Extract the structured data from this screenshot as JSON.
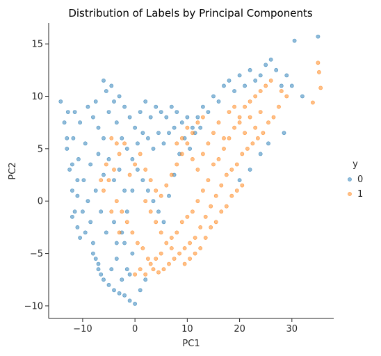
{
  "chart_data": {
    "type": "scatter",
    "title": "Distribution of Labels by Principal Components",
    "xlabel": "PC1",
    "ylabel": "PC2",
    "xlim": [
      -16.5,
      38.0
    ],
    "ylim": [
      -11.2,
      17.0
    ],
    "xticks": [
      -10,
      0,
      10,
      20,
      30
    ],
    "yticks": [
      -10,
      -5,
      0,
      5,
      10,
      15
    ],
    "grid": false,
    "legend": {
      "title": "y",
      "placement": "right",
      "entries": [
        "0",
        "1"
      ]
    },
    "series": [
      {
        "name": "0",
        "color": "#1f77b4",
        "points": [
          [
            -14.2,
            9.5
          ],
          [
            -13.5,
            7.5
          ],
          [
            -13.0,
            5.0
          ],
          [
            -12.5,
            3.0
          ],
          [
            -12.0,
            1.0
          ],
          [
            -11.5,
            -1.0
          ],
          [
            -11.0,
            -2.5
          ],
          [
            -10.5,
            -3.5
          ],
          [
            -12.8,
            8.5
          ],
          [
            -11.8,
            6.0
          ],
          [
            -10.8,
            4.0
          ],
          [
            -9.8,
            2.0
          ],
          [
            -9.0,
            0.0
          ],
          [
            -8.5,
            -2.0
          ],
          [
            -8.0,
            -4.0
          ],
          [
            -7.5,
            -5.5
          ],
          [
            -7.0,
            -6.5
          ],
          [
            -6.5,
            -7.0
          ],
          [
            -6.0,
            -7.5
          ],
          [
            -5.0,
            -8.0
          ],
          [
            -4.0,
            -8.5
          ],
          [
            -3.0,
            -8.8
          ],
          [
            -2.0,
            -9.0
          ],
          [
            -1.0,
            -9.5
          ],
          [
            0.0,
            -9.8
          ],
          [
            -2.5,
            -7.5
          ],
          [
            -1.5,
            -6.5
          ],
          [
            -0.5,
            -5.0
          ],
          [
            -3.5,
            -4.0
          ],
          [
            -5.5,
            -3.0
          ],
          [
            -6.5,
            -1.0
          ],
          [
            -7.5,
            1.0
          ],
          [
            -8.5,
            3.5
          ],
          [
            -9.5,
            5.5
          ],
          [
            -10.5,
            7.5
          ],
          [
            -11.5,
            8.5
          ],
          [
            -9.0,
            9.0
          ],
          [
            -8.0,
            8.0
          ],
          [
            -7.0,
            7.0
          ],
          [
            -6.0,
            6.0
          ],
          [
            -5.0,
            8.5
          ],
          [
            -4.0,
            9.5
          ],
          [
            -3.0,
            10.0
          ],
          [
            -2.0,
            9.0
          ],
          [
            -1.0,
            8.0
          ],
          [
            0.0,
            7.0
          ],
          [
            1.0,
            8.5
          ],
          [
            2.0,
            9.5
          ],
          [
            3.0,
            8.0
          ],
          [
            4.0,
            9.0
          ],
          [
            5.0,
            8.5
          ],
          [
            6.0,
            8.0
          ],
          [
            7.0,
            9.0
          ],
          [
            8.0,
            8.5
          ],
          [
            9.0,
            7.5
          ],
          [
            10.0,
            8.0
          ],
          [
            11.0,
            7.0
          ],
          [
            12.0,
            8.0
          ],
          [
            13.0,
            9.0
          ],
          [
            14.0,
            8.5
          ],
          [
            15.0,
            10.0
          ],
          [
            16.0,
            9.5
          ],
          [
            17.0,
            11.0
          ],
          [
            18.0,
            11.5
          ],
          [
            19.0,
            10.5
          ],
          [
            20.0,
            12.0
          ],
          [
            21.0,
            11.0
          ],
          [
            22.0,
            12.5
          ],
          [
            23.0,
            11.5
          ],
          [
            24.0,
            12.0
          ],
          [
            25.0,
            13.0
          ],
          [
            26.0,
            13.5
          ],
          [
            27.0,
            12.5
          ],
          [
            28.0,
            11.0
          ],
          [
            29.0,
            12.0
          ],
          [
            30.0,
            11.0
          ],
          [
            32.0,
            10.0
          ],
          [
            35.0,
            15.7
          ],
          [
            30.5,
            15.3
          ],
          [
            28.5,
            6.5
          ],
          [
            25.5,
            5.5
          ],
          [
            24.0,
            4.5
          ],
          [
            22.0,
            3.0
          ],
          [
            20.0,
            2.0
          ],
          [
            -5.5,
            10.5
          ],
          [
            -4.5,
            11.0
          ],
          [
            -6.0,
            11.5
          ],
          [
            -7.5,
            9.5
          ],
          [
            -3.5,
            7.5
          ],
          [
            -2.5,
            6.0
          ],
          [
            -1.5,
            5.0
          ],
          [
            -0.5,
            4.0
          ],
          [
            0.5,
            3.0
          ],
          [
            1.5,
            2.0
          ],
          [
            2.5,
            1.0
          ],
          [
            3.5,
            0.0
          ],
          [
            4.5,
            -1.0
          ],
          [
            5.5,
            -2.0
          ],
          [
            6.5,
            0.5
          ],
          [
            7.5,
            2.5
          ],
          [
            8.5,
            4.5
          ],
          [
            9.5,
            6.0
          ],
          [
            10.5,
            5.0
          ],
          [
            11.5,
            6.5
          ],
          [
            12.5,
            7.0
          ],
          [
            -12.0,
            -1.5
          ],
          [
            -11.0,
            0.5
          ],
          [
            -10.0,
            -1.0
          ],
          [
            -9.5,
            -3.0
          ],
          [
            -8.0,
            -5.0
          ],
          [
            -7.0,
            -6.0
          ],
          [
            -4.5,
            -6.5
          ],
          [
            -3.5,
            -5.5
          ],
          [
            -2.5,
            -3.0
          ],
          [
            -1.5,
            -1.0
          ],
          [
            -0.5,
            1.0
          ],
          [
            0.5,
            5.5
          ],
          [
            1.5,
            6.5
          ],
          [
            2.5,
            6.0
          ],
          [
            3.5,
            5.0
          ],
          [
            4.5,
            6.5
          ],
          [
            5.5,
            5.5
          ],
          [
            6.5,
            6.5
          ],
          [
            7.5,
            7.0
          ],
          [
            -4.0,
            2.0
          ],
          [
            -3.0,
            3.0
          ],
          [
            -2.0,
            1.0
          ],
          [
            -5.0,
            4.0
          ],
          [
            -6.0,
            2.5
          ],
          [
            -7.0,
            4.5
          ],
          [
            -4.0,
            -2.0
          ],
          [
            -2.0,
            -4.0
          ],
          [
            -1.0,
            -7.0
          ],
          [
            1.0,
            -8.5
          ],
          [
            2.0,
            -7.5
          ],
          [
            -13.0,
            6.0
          ],
          [
            -12.0,
            3.5
          ],
          [
            -11.0,
            2.0
          ]
        ]
      },
      {
        "name": "1",
        "color": "#ff7f0e",
        "points": [
          [
            0.0,
            -7.0
          ],
          [
            1.0,
            -6.5
          ],
          [
            2.0,
            -7.0
          ],
          [
            3.0,
            -6.0
          ],
          [
            4.0,
            -5.5
          ],
          [
            5.0,
            -5.0
          ],
          [
            6.0,
            -4.0
          ],
          [
            7.0,
            -3.5
          ],
          [
            8.0,
            -3.0
          ],
          [
            9.0,
            -2.0
          ],
          [
            10.0,
            -1.5
          ],
          [
            11.0,
            -1.0
          ],
          [
            12.0,
            0.0
          ],
          [
            13.0,
            1.0
          ],
          [
            14.0,
            2.0
          ],
          [
            15.0,
            3.5
          ],
          [
            16.0,
            4.0
          ],
          [
            17.0,
            5.0
          ],
          [
            18.0,
            6.0
          ],
          [
            19.0,
            7.0
          ],
          [
            20.0,
            8.0
          ],
          [
            21.0,
            9.0
          ],
          [
            22.0,
            9.5
          ],
          [
            23.0,
            10.0
          ],
          [
            24.0,
            10.5
          ],
          [
            25.0,
            11.0
          ],
          [
            26.0,
            11.5
          ],
          [
            28.0,
            10.5
          ],
          [
            29.0,
            10.0
          ],
          [
            34.0,
            9.4
          ],
          [
            35.0,
            13.2
          ],
          [
            35.2,
            12.3
          ],
          [
            35.5,
            10.8
          ],
          [
            27.5,
            9.0
          ],
          [
            26.5,
            8.0
          ],
          [
            25.5,
            7.5
          ],
          [
            24.5,
            6.5
          ],
          [
            23.5,
            6.0
          ],
          [
            22.5,
            5.5
          ],
          [
            21.5,
            5.0
          ],
          [
            20.5,
            4.5
          ],
          [
            19.5,
            3.5
          ],
          [
            18.5,
            3.0
          ],
          [
            17.5,
            2.5
          ],
          [
            16.5,
            1.5
          ],
          [
            15.5,
            0.5
          ],
          [
            14.5,
            -0.5
          ],
          [
            13.5,
            -1.5
          ],
          [
            12.5,
            -2.5
          ],
          [
            11.5,
            -3.5
          ],
          [
            10.5,
            -4.0
          ],
          [
            9.5,
            -4.5
          ],
          [
            8.5,
            -5.0
          ],
          [
            7.5,
            -5.5
          ],
          [
            6.5,
            -6.0
          ],
          [
            5.5,
            -6.5
          ],
          [
            4.5,
            -6.8
          ],
          [
            3.5,
            -6.5
          ],
          [
            2.5,
            -5.5
          ],
          [
            1.5,
            -4.5
          ],
          [
            -2.0,
            5.5
          ],
          [
            -3.0,
            4.5
          ],
          [
            -4.0,
            3.0
          ],
          [
            -5.0,
            2.0
          ],
          [
            -6.0,
            1.0
          ],
          [
            -3.5,
            0.0
          ],
          [
            -2.5,
            -1.0
          ],
          [
            -1.5,
            -2.0
          ],
          [
            -0.5,
            -3.0
          ],
          [
            0.5,
            -4.0
          ],
          [
            -1.0,
            2.5
          ],
          [
            0.0,
            3.5
          ],
          [
            1.0,
            4.5
          ],
          [
            2.0,
            3.0
          ],
          [
            3.0,
            2.0
          ],
          [
            4.0,
            1.0
          ],
          [
            5.0,
            0.5
          ],
          [
            6.0,
            1.5
          ],
          [
            7.0,
            2.5
          ],
          [
            8.0,
            3.5
          ],
          [
            9.0,
            4.5
          ],
          [
            10.0,
            5.5
          ],
          [
            11.0,
            4.0
          ],
          [
            12.0,
            3.0
          ],
          [
            13.0,
            4.5
          ],
          [
            14.0,
            5.5
          ],
          [
            15.0,
            6.5
          ],
          [
            16.0,
            7.5
          ],
          [
            17.0,
            6.0
          ],
          [
            18.0,
            8.5
          ],
          [
            19.0,
            9.0
          ],
          [
            20.0,
            7.5
          ],
          [
            21.0,
            6.5
          ],
          [
            22.0,
            8.0
          ],
          [
            23.0,
            7.0
          ],
          [
            24.0,
            8.5
          ],
          [
            20.5,
            1.5
          ],
          [
            19.5,
            1.0
          ],
          [
            18.5,
            0.5
          ],
          [
            17.5,
            -0.5
          ],
          [
            16.5,
            -1.0
          ],
          [
            15.5,
            -2.0
          ],
          [
            14.5,
            -2.5
          ],
          [
            13.5,
            -3.5
          ],
          [
            12.5,
            -4.5
          ],
          [
            11.5,
            -5.0
          ],
          [
            10.5,
            -5.5
          ],
          [
            9.5,
            -6.0
          ],
          [
            7.0,
            -4.5
          ],
          [
            5.0,
            -3.0
          ],
          [
            4.0,
            -2.0
          ],
          [
            3.0,
            -1.0
          ],
          [
            2.0,
            0.0
          ],
          [
            -4.5,
            6.0
          ],
          [
            -3.5,
            5.5
          ],
          [
            -5.5,
            3.5
          ],
          [
            -6.5,
            2.0
          ],
          [
            -4.5,
            -1.0
          ],
          [
            -3.0,
            -3.0
          ],
          [
            13.0,
            8.0
          ],
          [
            12.0,
            7.5
          ],
          [
            11.0,
            6.5
          ],
          [
            10.0,
            7.0
          ],
          [
            9.0,
            6.0
          ],
          [
            8.0,
            5.5
          ]
        ]
      }
    ]
  }
}
